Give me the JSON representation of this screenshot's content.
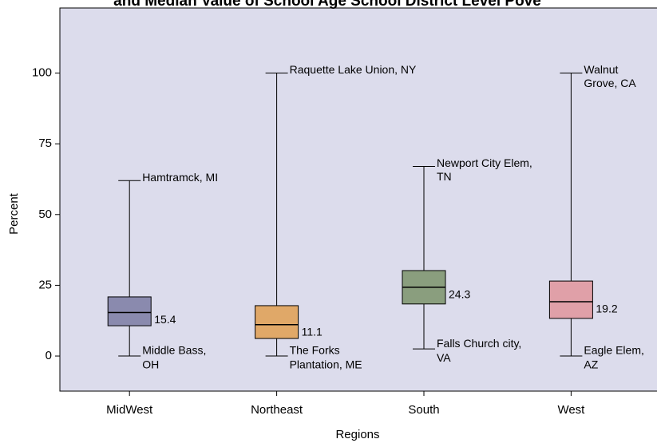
{
  "chart_data": {
    "type": "box",
    "title": "and Median Value of School Age School District Level Pove",
    "x_label": "Regions",
    "y_label": "Percent",
    "categories": [
      "MidWest",
      "Northeast",
      "South",
      "West"
    ],
    "colors": [
      "#8a8aae",
      "#e0a868",
      "#8a9e7e",
      "#e0a0a8"
    ],
    "boxes": [
      {
        "min": 0,
        "q1": 10.7,
        "median": 15.4,
        "q3": 20.9,
        "max": 62
      },
      {
        "min": 0,
        "q1": 6.2,
        "median": 11.1,
        "q3": 17.8,
        "max": 100
      },
      {
        "min": 2.5,
        "q1": 18.4,
        "median": 24.3,
        "q3": 30.2,
        "max": 67
      },
      {
        "min": 0,
        "q1": 13.3,
        "median": 19.2,
        "q3": 26.5,
        "max": 100
      }
    ],
    "max_labels": [
      [
        "Hamtramck, MI"
      ],
      [
        "Raquette Lake Union, NY"
      ],
      [
        "Newport City Elem,",
        "TN"
      ],
      [
        "Walnut",
        "Grove, CA"
      ]
    ],
    "min_labels": [
      [
        "Middle Bass,",
        "OH"
      ],
      [
        "The Forks",
        "Plantation, ME"
      ],
      [
        "Falls Church city,",
        "VA"
      ],
      [
        "Eagle Elem,",
        "AZ"
      ]
    ],
    "ylim": [
      -12.4,
      123
    ],
    "yticks": [
      0,
      25,
      50,
      75,
      100
    ]
  }
}
